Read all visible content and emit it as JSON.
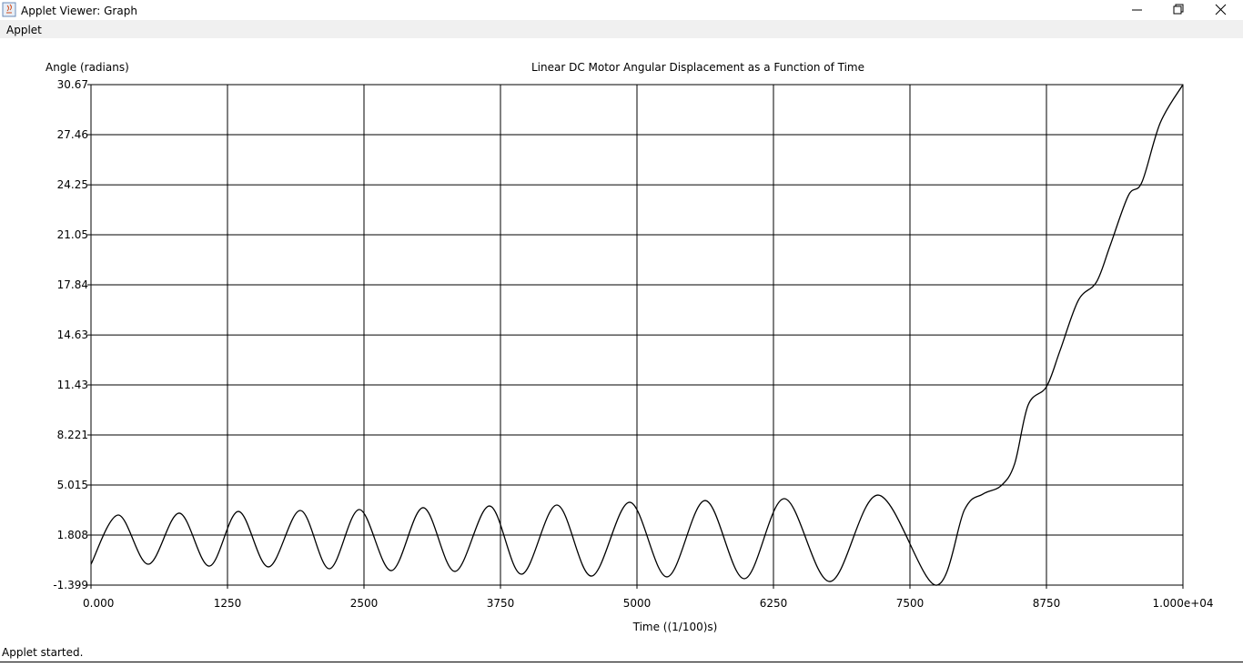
{
  "window": {
    "title": "Applet Viewer: Graph",
    "menu": [
      "Applet"
    ],
    "status": "Applet started."
  },
  "chart_data": {
    "type": "line",
    "title": "Linear DC Motor Angular Displacement as a Function of Time",
    "ylabel": "Angle (radians)",
    "xlabel": "Time ((1/100)s)",
    "x": [
      0,
      250,
      525,
      808,
      1083,
      1350,
      1625,
      1917,
      2183,
      2458,
      2750,
      3042,
      3333,
      3650,
      3942,
      4267,
      4583,
      4933,
      5275,
      5625,
      5983,
      6350,
      6767,
      7208,
      7733,
      8000,
      8167,
      8333,
      8458,
      8583,
      8750,
      8875,
      9042,
      9208,
      9333,
      9500,
      9625,
      9792,
      10000
    ],
    "values": [
      -0.06,
      3.09,
      -0.06,
      3.21,
      -0.18,
      3.32,
      -0.23,
      3.38,
      -0.35,
      3.44,
      -0.47,
      3.56,
      -0.52,
      3.67,
      -0.7,
      3.73,
      -0.82,
      3.91,
      -0.87,
      4.02,
      -0.99,
      4.14,
      -1.17,
      4.37,
      -1.4,
      3.44,
      4.43,
      4.96,
      6.36,
      10.15,
      11.31,
      13.64,
      16.85,
      18.02,
      20.35,
      23.56,
      24.43,
      28.22,
      30.67
    ],
    "color": "#000000",
    "xlim": [
      0,
      10000
    ],
    "ylim": [
      -1.399,
      30.67
    ],
    "xticks": [
      {
        "value": 0,
        "label": "0.000"
      },
      1250,
      2500,
      3750,
      5000,
      6250,
      7500,
      8750,
      {
        "value": 10000,
        "label": "1.000e+04"
      }
    ],
    "yticks": [
      -1.399,
      1.808,
      5.015,
      8.221,
      11.43,
      14.63,
      17.84,
      21.05,
      24.25,
      27.46,
      30.67
    ],
    "grid": true
  }
}
